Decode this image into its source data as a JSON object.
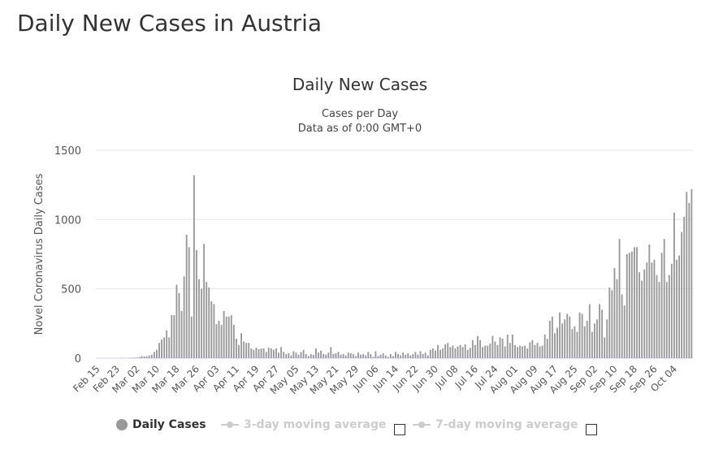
{
  "page_title": "Daily New Cases in Austria",
  "chart_data": {
    "type": "bar",
    "title": "Daily New Cases",
    "subtitle_line1": "Cases per Day",
    "subtitle_line2": "Data as of 0:00 GMT+0",
    "ylabel": "Novel Coronavirus Daily Cases",
    "xlabel": "",
    "ylim": [
      0,
      1500
    ],
    "y_ticks": [
      "0",
      "500",
      "1000",
      "1500"
    ],
    "y_tick_values": [
      0,
      500,
      1000,
      1500
    ],
    "grid": true,
    "x_start": "Feb 15",
    "x_end": "Oct 11",
    "x_tick_interval_days": 8,
    "x_tick_labels": [
      "Feb 15",
      "Feb 23",
      "Mar 02",
      "Mar 10",
      "Mar 18",
      "Mar 26",
      "Apr 03",
      "Apr 11",
      "Apr 19",
      "Apr 27",
      "May 05",
      "May 13",
      "May 21",
      "May 29",
      "Jun 06",
      "Jun 14",
      "Jun 22",
      "Jun 30",
      "Jul 08",
      "Jul 16",
      "Jul 24",
      "Aug 01",
      "Aug 09",
      "Aug 17",
      "Aug 25",
      "Sep 02",
      "Sep 10",
      "Sep 18",
      "Sep 26",
      "Oct 04"
    ],
    "series": [
      {
        "name": "Daily Cases",
        "color": "#999999",
        "values": [
          0,
          0,
          0,
          0,
          0,
          0,
          0,
          0,
          0,
          0,
          2,
          0,
          1,
          3,
          3,
          4,
          4,
          8,
          14,
          12,
          14,
          20,
          25,
          45,
          60,
          110,
          135,
          150,
          200,
          150,
          310,
          310,
          530,
          470,
          340,
          590,
          890,
          800,
          300,
          1320,
          780,
          570,
          500,
          825,
          550,
          510,
          410,
          390,
          245,
          270,
          240,
          340,
          300,
          300,
          310,
          240,
          140,
          95,
          180,
          120,
          110,
          110,
          70,
          60,
          75,
          65,
          70,
          70,
          45,
          75,
          70,
          60,
          70,
          40,
          80,
          45,
          30,
          35,
          20,
          50,
          40,
          25,
          45,
          60,
          30,
          15,
          30,
          25,
          70,
          40,
          55,
          30,
          25,
          40,
          80,
          30,
          35,
          45,
          25,
          30,
          20,
          40,
          35,
          30,
          15,
          40,
          25,
          30,
          20,
          45,
          30,
          10,
          50,
          15,
          25,
          35,
          20,
          10,
          30,
          15,
          45,
          30,
          20,
          40,
          25,
          35,
          20,
          30,
          45,
          25,
          50,
          30,
          40,
          20,
          60,
          70,
          55,
          95,
          60,
          70,
          100,
          110,
          80,
          90,
          70,
          85,
          95,
          80,
          100,
          60,
          75,
          130,
          95,
          160,
          130,
          80,
          90,
          90,
          105,
          160,
          120,
          95,
          150,
          140,
          85,
          170,
          110,
          170,
          95,
          80,
          90,
          85,
          90,
          70,
          115,
          130,
          95,
          110,
          85,
          90,
          170,
          140,
          270,
          300,
          180,
          220,
          330,
          250,
          280,
          320,
          300,
          210,
          230,
          190,
          330,
          320,
          230,
          270,
          390,
          190,
          250,
          280,
          390,
          350,
          150,
          280,
          510,
          490,
          650,
          570,
          860,
          460,
          380,
          750,
          760,
          770,
          800,
          800,
          620,
          560,
          640,
          690,
          820,
          690,
          710,
          600,
          550,
          760,
          860,
          550,
          600,
          680,
          1050,
          710,
          740,
          910,
          1020,
          1200,
          1120,
          1220
        ]
      }
    ],
    "legend": [
      {
        "label": "Daily Cases",
        "color": "#999999",
        "active": true
      },
      {
        "label": "3-day moving average",
        "color": "#cccccc",
        "active": false
      },
      {
        "label": "7-day moving average",
        "color": "#cccccc",
        "active": false
      }
    ],
    "legend_position": "bottom"
  }
}
